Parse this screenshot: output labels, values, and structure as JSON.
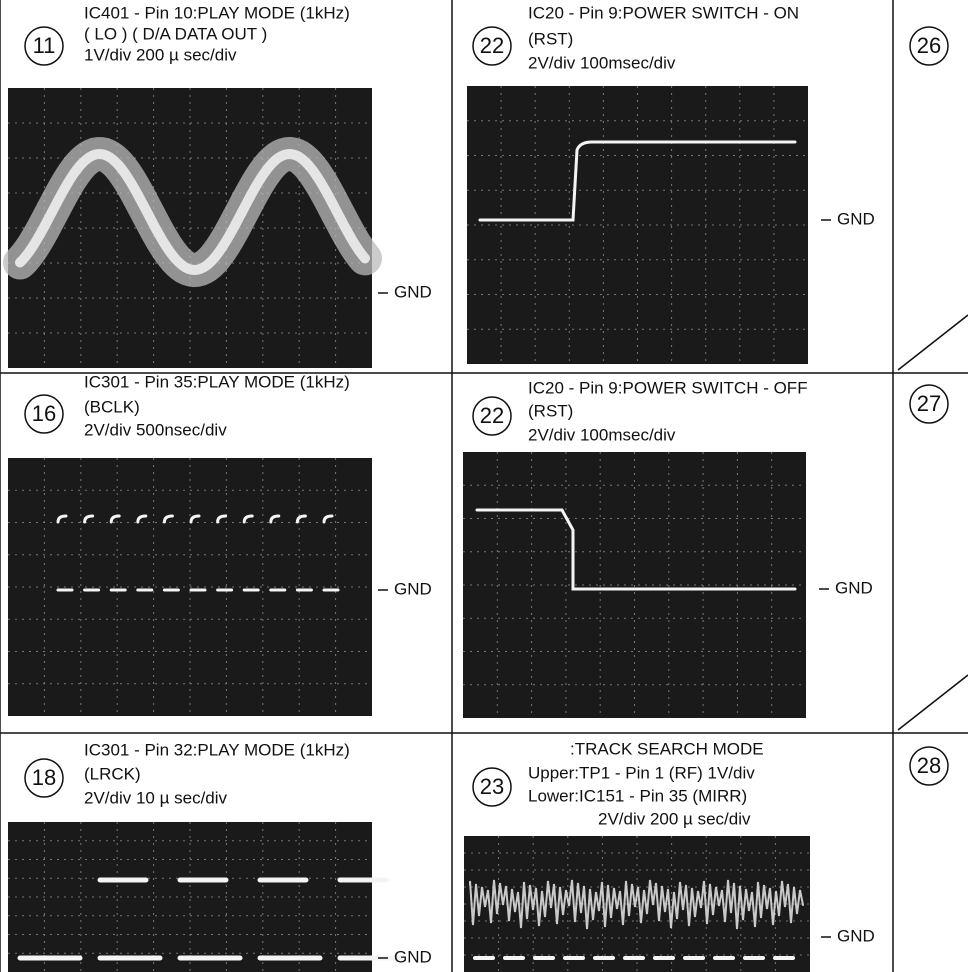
{
  "panels": [
    {
      "number": "11",
      "lines": [
        "IC401 - Pin 10:PLAY MODE (1kHz)",
        "( LO ) ( D/A DATA OUT )",
        "1V/div   200 µ sec/div"
      ],
      "gnd": "GND"
    },
    {
      "number": "22",
      "lines": [
        "IC20 - Pin 9:POWER SWITCH - ON",
        "(RST)",
        "2V/div   100msec/div"
      ],
      "gnd": "GND"
    },
    {
      "number": "16",
      "lines": [
        "IC301 - Pin 35:PLAY MODE (1kHz)",
        "(BCLK)",
        "2V/div   500nsec/div"
      ],
      "gnd": "GND"
    },
    {
      "number": "22",
      "lines": [
        "IC20 - Pin 9:POWER SWITCH - OFF",
        "(RST)",
        "2V/div   100msec/div"
      ],
      "gnd": "GND"
    },
    {
      "number": "18",
      "lines": [
        "IC301 - Pin 32:PLAY MODE (1kHz)",
        "(LRCK)",
        "2V/div   10 µ sec/div"
      ],
      "gnd": "GND"
    },
    {
      "number": "23",
      "lines": [
        ":TRACK SEARCH MODE",
        "Upper:TP1 - Pin 1 (RF) 1V/div",
        "Lower:IC151 - Pin 35 (MIRR)",
        "2V/div   200 µ sec/div"
      ],
      "gnd": "GND"
    }
  ],
  "right_numbers": [
    "26",
    "27",
    "28"
  ]
}
